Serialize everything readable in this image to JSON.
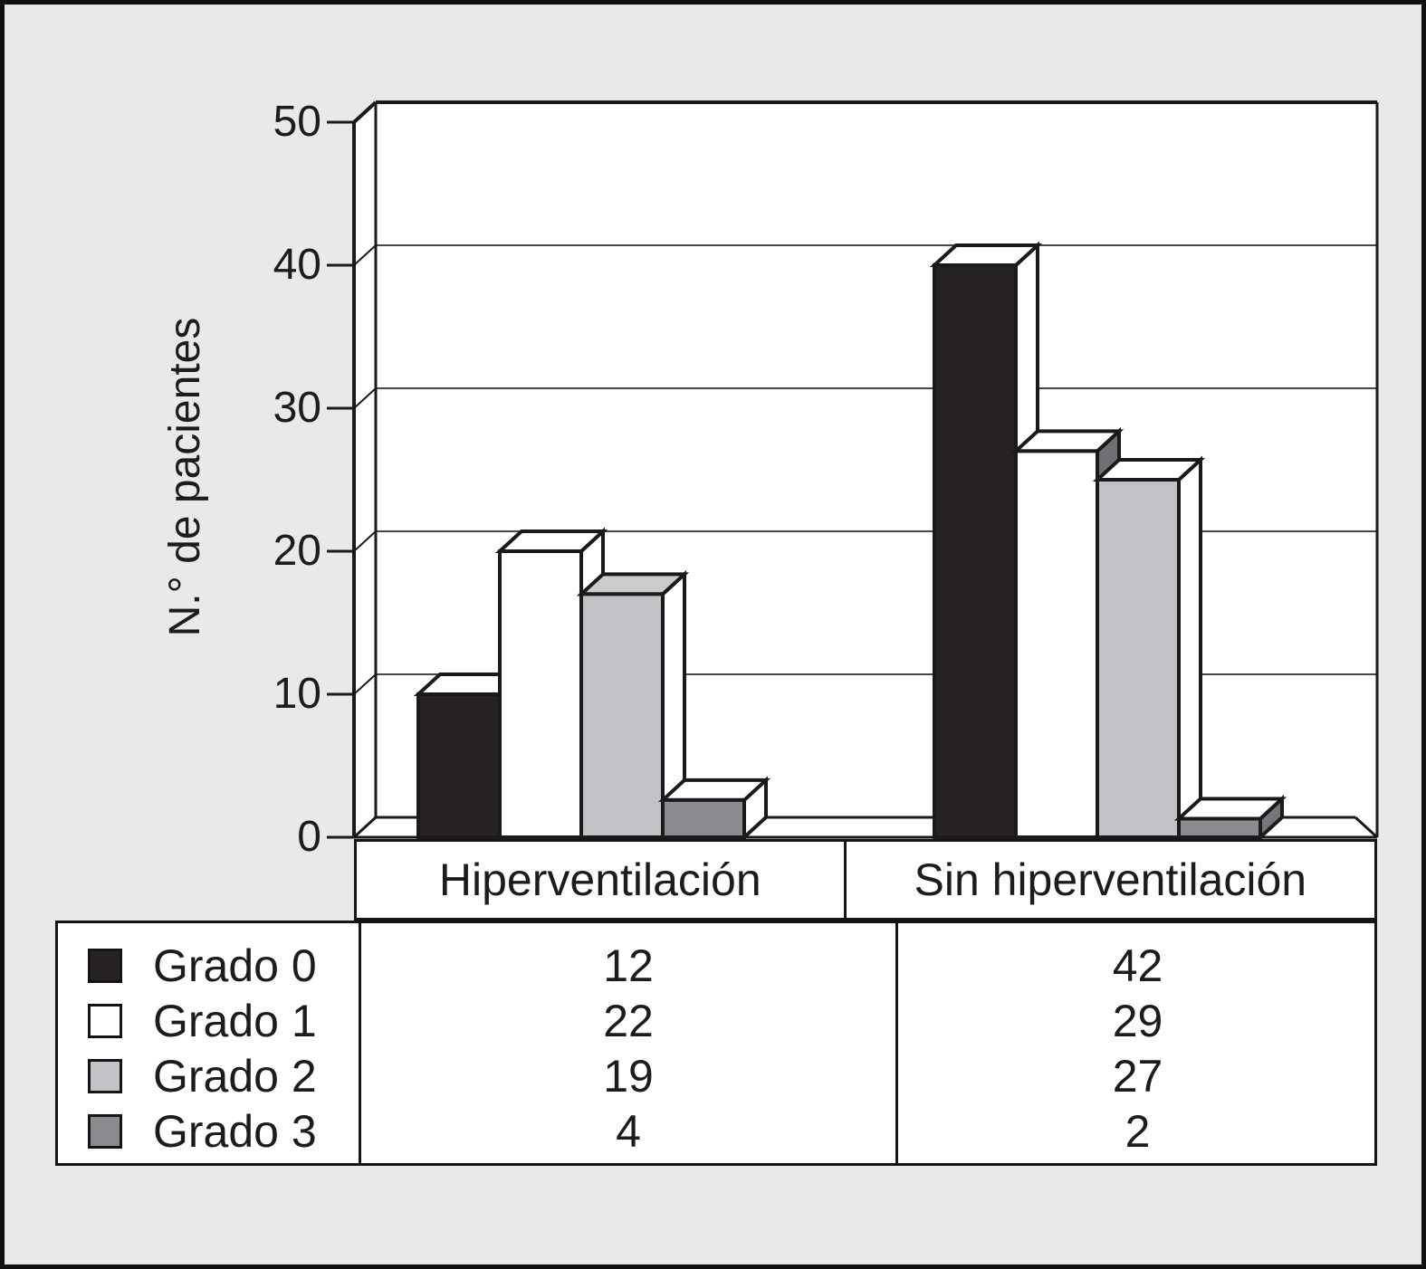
{
  "figure": {
    "background_color": "#e9e9eb",
    "frame_color": "#111111",
    "plot_background": "#ffffff"
  },
  "chart_data": {
    "type": "bar",
    "style": "3d-column",
    "title": "",
    "xlabel": "",
    "ylabel": "N.° de pacientes",
    "ylim": [
      0,
      50
    ],
    "yticks": [
      0,
      10,
      20,
      30,
      40,
      50
    ],
    "grid": true,
    "legend_position": "data-table-below",
    "categories": [
      "Hiperventilación",
      "Sin hiperventilación"
    ],
    "series": [
      {
        "name": "Grado 0",
        "color": "#262223",
        "values": [
          12,
          42
        ]
      },
      {
        "name": "Grado 1",
        "color": "#ffffff",
        "values": [
          22,
          29
        ]
      },
      {
        "name": "Grado 2",
        "color": "#c2c2c6",
        "values": [
          19,
          27
        ]
      },
      {
        "name": "Grado 3",
        "color": "#8b8b8f",
        "values": [
          4,
          2
        ]
      }
    ]
  }
}
